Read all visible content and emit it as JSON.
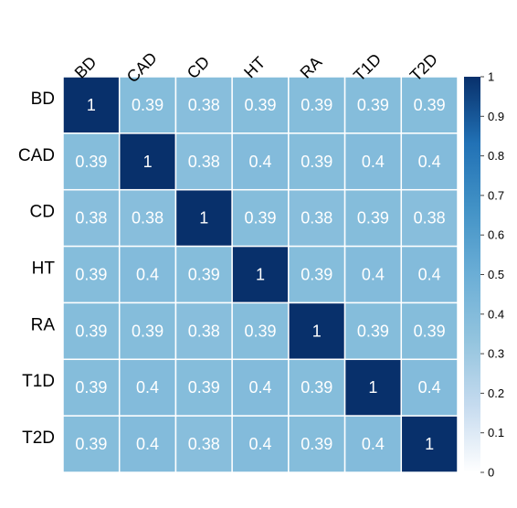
{
  "chart_data": {
    "type": "heatmap",
    "title": "",
    "xlabel": "",
    "ylabel": "",
    "rows": [
      "BD",
      "CAD",
      "CD",
      "HT",
      "RA",
      "T1D",
      "T2D"
    ],
    "columns": [
      "BD",
      "CAD",
      "CD",
      "HT",
      "RA",
      "T1D",
      "T2D"
    ],
    "values": [
      [
        1,
        0.39,
        0.38,
        0.39,
        0.39,
        0.39,
        0.39
      ],
      [
        0.39,
        1,
        0.38,
        0.4,
        0.39,
        0.4,
        0.4
      ],
      [
        0.38,
        0.38,
        1,
        0.39,
        0.38,
        0.39,
        0.38
      ],
      [
        0.39,
        0.4,
        0.39,
        1,
        0.39,
        0.4,
        0.4
      ],
      [
        0.39,
        0.39,
        0.38,
        0.39,
        1,
        0.39,
        0.39
      ],
      [
        0.39,
        0.4,
        0.39,
        0.4,
        0.39,
        1,
        0.4
      ],
      [
        0.39,
        0.4,
        0.38,
        0.4,
        0.39,
        0.4,
        1
      ]
    ],
    "color_scale": {
      "range": [
        0,
        1
      ],
      "ticks": [
        "0",
        "0.1",
        "0.2",
        "0.3",
        "0.4",
        "0.5",
        "0.6",
        "0.7",
        "0.8",
        "0.9",
        "1"
      ],
      "colors": [
        "#ffffff",
        "#c6dbef",
        "#93c4de",
        "#6baed6",
        "#4292c6",
        "#2171b5",
        "#08306b"
      ],
      "legend_position": "right"
    },
    "cell_text_color": "#ffffff",
    "grid_line_color": "#ffffff"
  }
}
